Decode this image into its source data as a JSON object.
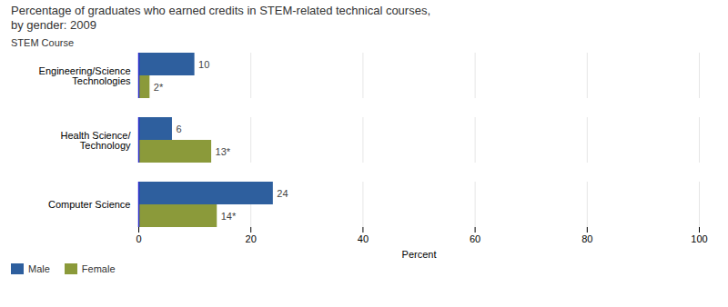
{
  "chart_data": {
    "type": "bar",
    "orientation": "horizontal",
    "title": "Percentage of graduates who earned credits in STEM-related technical courses,",
    "subtitle": "by gender: 2009",
    "y_label": "STEM Course",
    "x_label": "Percent",
    "categories": [
      "Computer Science",
      "Health Science/\nTechnology",
      "Engineering/Science\nTechnologies"
    ],
    "series": [
      {
        "name": "Male",
        "color": "#2e5f9e",
        "values": [
          24,
          6,
          10
        ]
      },
      {
        "name": "Female",
        "color": "#8b9a3a",
        "values": [
          14,
          13,
          2
        ],
        "value_labels": [
          "14*",
          "13*",
          "2*"
        ]
      }
    ],
    "xlim": [
      0,
      100
    ],
    "xticks": [
      0,
      20,
      40,
      60,
      80,
      100
    ],
    "grid": true,
    "legend": "lower left",
    "data_labels": true
  }
}
